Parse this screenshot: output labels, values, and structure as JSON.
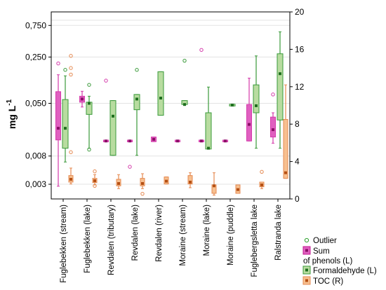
{
  "chart_data": {
    "type": "box",
    "y_left": {
      "label": "mg L",
      "label_superscript": "-1",
      "scale": "log",
      "ticks": [
        "0,003",
        "0,008",
        "0,050",
        "0,250",
        "0,750"
      ],
      "tick_values": [
        0.003,
        0.008,
        0.05,
        0.25,
        0.75
      ],
      "range": [
        0.0018,
        1.2
      ]
    },
    "y_right": {
      "ticks": [
        "0",
        "4",
        "8",
        "12",
        "16",
        "20"
      ],
      "tick_values": [
        0,
        4,
        8,
        12,
        16,
        20
      ],
      "range": [
        0,
        20
      ]
    },
    "categories": [
      "Fuglebekken (stream)",
      "Fuglebekken (lake)",
      "Revdalen (tributary)",
      "Revdalen (lake)",
      "Revdalen (river)",
      "Moraine (stream)",
      "Moraine (lake)",
      "Moraine (puddle)",
      "Fuglebergsletta lake",
      "Ralstranda lake"
    ],
    "series": [
      {
        "name": "Sum of phenols (L)",
        "legend_line1": "Sum",
        "legend_line2": "of phenols (L)",
        "axis": "left",
        "color": "#d43aaa",
        "fill": "#e060c0",
        "boxes": [
          {
            "cat": 0,
            "whisker_low": 0.0028,
            "q1": 0.014,
            "median": 0.021,
            "q3": 0.075,
            "whisker_high": 0.135,
            "outliers": [
              0.2
            ]
          },
          {
            "cat": 1,
            "whisker_low": 0.044,
            "q1": 0.052,
            "median": 0.058,
            "q3": 0.064,
            "whisker_high": 0.076,
            "outliers": []
          },
          {
            "cat": 2,
            "whisker_low": 0.0135,
            "q1": 0.0135,
            "median": 0.0135,
            "q3": 0.0135,
            "whisker_high": 0.0135,
            "outliers": [
              0.11
            ]
          },
          {
            "cat": 3,
            "whisker_low": 0.0135,
            "q1": 0.0135,
            "median": 0.0135,
            "q3": 0.0135,
            "whisker_high": 0.0135,
            "outliers": [
              0.0055
            ]
          },
          {
            "cat": 4,
            "whisker_low": 0.0132,
            "q1": 0.0132,
            "median": 0.0143,
            "q3": 0.0155,
            "whisker_high": 0.0155,
            "outliers": []
          },
          {
            "cat": 5,
            "whisker_low": 0.0135,
            "q1": 0.0135,
            "median": 0.0135,
            "q3": 0.0135,
            "whisker_high": 0.0135,
            "outliers": []
          },
          {
            "cat": 6,
            "whisker_low": 0.0135,
            "q1": 0.0135,
            "median": 0.0135,
            "q3": 0.0135,
            "whisker_high": 0.0135,
            "outliers": [
              0.32
            ]
          },
          {
            "cat": 7,
            "whisker_low": 0.0135,
            "q1": 0.0135,
            "median": 0.0135,
            "q3": 0.0135,
            "whisker_high": 0.0135,
            "outliers": []
          },
          {
            "cat": 8,
            "whisker_low": 0.0135,
            "q1": 0.0135,
            "median": 0.024,
            "q3": 0.048,
            "whisker_high": 0.12,
            "outliers": []
          },
          {
            "cat": 8.6,
            "whisker_low": 0.0125,
            "q1": 0.0155,
            "median": 0.02,
            "q3": 0.031,
            "whisker_high": 0.036,
            "outliers": [
              0.068
            ]
          }
        ]
      },
      {
        "name": "Formaldehyde (L)",
        "legend_line1": "Formaldehyde (L)",
        "axis": "left",
        "color": "#3a9a3a",
        "fill": "#b8dca0",
        "boxes": [
          {
            "cat": 0,
            "whisker_low": 0.0065,
            "q1": 0.0105,
            "median": 0.021,
            "q3": 0.057,
            "whisker_high": 0.13,
            "outliers": [
              0.16
            ]
          },
          {
            "cat": 1,
            "whisker_low": 0.0105,
            "q1": 0.034,
            "median": 0.05,
            "q3": 0.052,
            "whisker_high": 0.064,
            "outliers": [
              0.01,
              0.095
            ]
          },
          {
            "cat": 2,
            "whisker_low": 0.0082,
            "q1": 0.0082,
            "median": 0.032,
            "q3": 0.055,
            "whisker_high": 0.055,
            "outliers": []
          },
          {
            "cat": 3,
            "whisker_low": 0.0082,
            "q1": 0.04,
            "median": 0.058,
            "q3": 0.068,
            "whisker_high": 0.068,
            "outliers": [
              0.16
            ]
          },
          {
            "cat": 4,
            "whisker_low": 0.033,
            "q1": 0.033,
            "median": 0.06,
            "q3": 0.15,
            "whisker_high": 0.15,
            "outliers": []
          },
          {
            "cat": 5,
            "whisker_low": 0.048,
            "q1": 0.048,
            "median": 0.048,
            "q3": 0.055,
            "whisker_high": 0.055,
            "outliers": [
              0.22
            ]
          },
          {
            "cat": 6,
            "whisker_low": 0.0102,
            "q1": 0.0102,
            "median": 0.0105,
            "q3": 0.036,
            "whisker_high": 0.088,
            "outliers": []
          },
          {
            "cat": 7,
            "whisker_low": 0.047,
            "q1": 0.047,
            "median": 0.047,
            "q3": 0.047,
            "whisker_high": 0.047,
            "outliers": []
          },
          {
            "cat": 8,
            "whisker_low": 0.0105,
            "q1": 0.036,
            "median": 0.046,
            "q3": 0.095,
            "whisker_high": 0.26,
            "outliers": []
          },
          {
            "cat": 8.6,
            "whisker_low": 0.0105,
            "q1": 0.028,
            "median": 0.14,
            "q3": 0.28,
            "whisker_high": 0.6,
            "outliers": []
          }
        ]
      },
      {
        "name": "TOC (R)",
        "legend_line1": "TOC (R)",
        "axis": "right",
        "color": "#e58a52",
        "fill": "#f7c090",
        "boxes": [
          {
            "cat": 0,
            "whisker_low": 1.6,
            "q1": 1.8,
            "median": 2.1,
            "q3": 2.5,
            "whisker_high": 3.3,
            "outliers": [
              5.0,
              15.3,
              14.0,
              13.3
            ]
          },
          {
            "cat": 1,
            "whisker_low": 1.5,
            "q1": 1.75,
            "median": 1.95,
            "q3": 2.2,
            "whisker_high": 2.6,
            "outliers": [
              1.4,
              2.95
            ]
          },
          {
            "cat": 2,
            "whisker_low": 1.1,
            "q1": 1.4,
            "median": 1.65,
            "q3": 2.1,
            "whisker_high": 2.6,
            "outliers": []
          },
          {
            "cat": 3,
            "whisker_low": 1.1,
            "q1": 1.4,
            "median": 1.65,
            "q3": 2.2,
            "whisker_high": 2.7,
            "outliers": [
              0.55
            ]
          },
          {
            "cat": 4,
            "whisker_low": 1.6,
            "q1": 1.6,
            "median": 1.9,
            "q3": 2.35,
            "whisker_high": 2.35,
            "outliers": []
          },
          {
            "cat": 5,
            "whisker_low": 1.2,
            "q1": 1.6,
            "median": 1.8,
            "q3": 2.5,
            "whisker_high": 2.8,
            "outliers": []
          },
          {
            "cat": 6,
            "whisker_low": 0.4,
            "q1": 0.6,
            "median": 1.4,
            "q3": 1.5,
            "whisker_high": 2.8,
            "outliers": []
          },
          {
            "cat": 7,
            "whisker_low": 0.6,
            "q1": 0.6,
            "median": 1.0,
            "q3": 1.5,
            "whisker_high": 1.5,
            "outliers": []
          },
          {
            "cat": 8,
            "whisker_low": 1.1,
            "q1": 1.3,
            "median": 1.5,
            "q3": 1.8,
            "whisker_high": 1.8,
            "outliers": [
              2.9
            ]
          },
          {
            "cat": 9,
            "whisker_low": 2.2,
            "q1": 2.2,
            "median": 2.8,
            "q3": 8.5,
            "whisker_high": 12.2,
            "outliers": []
          }
        ]
      }
    ],
    "legend": {
      "placement": "bottom-right",
      "outlier_label": "Outlier"
    },
    "grid": true
  }
}
